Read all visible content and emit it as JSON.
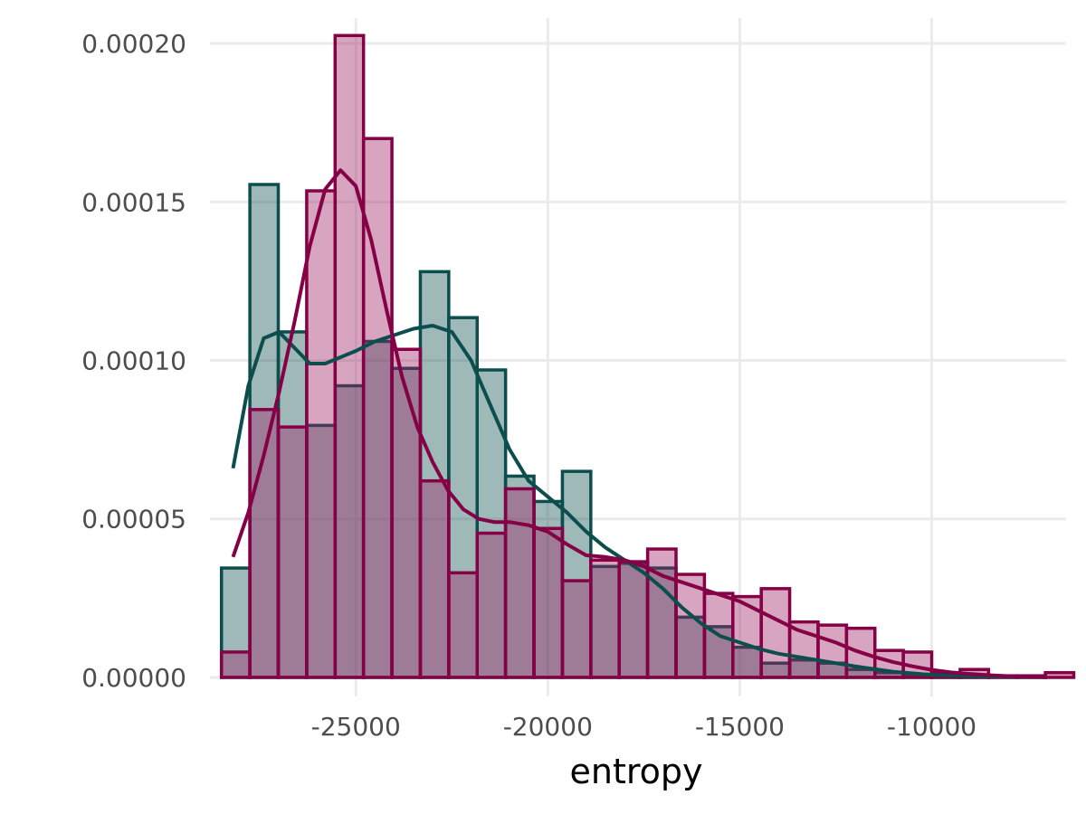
{
  "chart_data": {
    "type": "histogram",
    "xlabel": "entropy",
    "ylabel": "",
    "xlim": [
      -28800,
      -6500
    ],
    "ylim": [
      -6e-06,
      0.000208
    ],
    "x_ticks": [
      -25000,
      -20000,
      -15000,
      -10000
    ],
    "x_tick_labels": [
      "-25000",
      "-20000",
      "-15000",
      "-10000"
    ],
    "y_ticks": [
      0,
      5e-05,
      0.0001,
      0.00015,
      0.0002
    ],
    "y_tick_labels": [
      "0.00000",
      "0.00005",
      "0.00010",
      "0.00015",
      "0.00020"
    ],
    "grid": true,
    "legend": "none",
    "bin_width": 740,
    "series": [
      {
        "fill": "#0e5050",
        "stroke": "#0c4e4e",
        "bins": [
          [
            -28500,
            3.45e-05
          ],
          [
            -27760,
            0.0001555
          ],
          [
            -27020,
            0.000109
          ],
          [
            -26280,
            7.95e-05
          ],
          [
            -25540,
            9.2e-05
          ],
          [
            -24800,
            0.000106
          ],
          [
            -24060,
            9.75e-05
          ],
          [
            -23320,
            0.000128
          ],
          [
            -22580,
            0.0001135
          ],
          [
            -21840,
            9.7e-05
          ],
          [
            -21100,
            6.35e-05
          ],
          [
            -20360,
            5.55e-05
          ],
          [
            -19620,
            6.5e-05
          ],
          [
            -18880,
            3.5e-05
          ],
          [
            -18140,
            3.6e-05
          ],
          [
            -17400,
            3.45e-05
          ],
          [
            -16660,
            1.9e-05
          ],
          [
            -15920,
            1.6e-05
          ],
          [
            -15180,
            9.5e-06
          ],
          [
            -14440,
            4.5e-06
          ],
          [
            -13700,
            5.5e-06
          ],
          [
            -12960,
            4.5e-06
          ],
          [
            -12220,
            2.5e-06
          ],
          [
            -11480,
            1.5e-06
          ],
          [
            -10740,
            1e-06
          ],
          [
            -10000,
            5e-07
          ],
          [
            -9260,
            5e-07
          ],
          [
            -8520,
            5e-07
          ],
          [
            -7780,
            5e-07
          ]
        ],
        "density": [
          [
            -28200,
            6.6e-05
          ],
          [
            -27800,
            9.2e-05
          ],
          [
            -27400,
            0.000107
          ],
          [
            -27000,
            0.000109
          ],
          [
            -26600,
            0.000104
          ],
          [
            -26200,
            9.9e-05
          ],
          [
            -25800,
            9.9e-05
          ],
          [
            -25400,
            0.000101
          ],
          [
            -25000,
            0.000103
          ],
          [
            -24500,
            0.000106
          ],
          [
            -24000,
            0.000108
          ],
          [
            -23500,
            0.00011
          ],
          [
            -23000,
            0.000111
          ],
          [
            -22500,
            0.000109
          ],
          [
            -22000,
            0.0001
          ],
          [
            -21500,
            8.6e-05
          ],
          [
            -21000,
            7.2e-05
          ],
          [
            -20500,
            6.2e-05
          ],
          [
            -20000,
            5.7e-05
          ],
          [
            -19500,
            5.2e-05
          ],
          [
            -19000,
            4.6e-05
          ],
          [
            -18500,
            4.1e-05
          ],
          [
            -18000,
            3.7e-05
          ],
          [
            -17500,
            3.3e-05
          ],
          [
            -17000,
            2.8e-05
          ],
          [
            -16500,
            2.2e-05
          ],
          [
            -16000,
            1.7e-05
          ],
          [
            -15500,
            1.3e-05
          ],
          [
            -15000,
            1.1e-05
          ],
          [
            -14500,
            9e-06
          ],
          [
            -14000,
            7.5e-06
          ],
          [
            -13500,
            6.5e-06
          ],
          [
            -13000,
            5.5e-06
          ],
          [
            -12500,
            4.5e-06
          ],
          [
            -12000,
            3.5e-06
          ],
          [
            -11000,
            1.8e-06
          ],
          [
            -10000,
            8e-07
          ],
          [
            -9000,
            4e-07
          ],
          [
            -8000,
            2e-07
          ],
          [
            -7000,
            1e-07
          ]
        ]
      },
      {
        "fill": "#9e1f63",
        "stroke": "#850045",
        "bins": [
          [
            -28500,
            8e-06
          ],
          [
            -27760,
            8.45e-05
          ],
          [
            -27020,
            7.9e-05
          ],
          [
            -26280,
            0.0001535
          ],
          [
            -25540,
            0.0002025
          ],
          [
            -24800,
            0.00017
          ],
          [
            -24060,
            0.0001035
          ],
          [
            -23320,
            6.2e-05
          ],
          [
            -22580,
            3.3e-05
          ],
          [
            -21840,
            4.55e-05
          ],
          [
            -21100,
            5.95e-05
          ],
          [
            -20360,
            4.7e-05
          ],
          [
            -19620,
            3.05e-05
          ],
          [
            -18880,
            3.7e-05
          ],
          [
            -18140,
            3.65e-05
          ],
          [
            -17400,
            4.05e-05
          ],
          [
            -16660,
            3.25e-05
          ],
          [
            -15920,
            2.65e-05
          ],
          [
            -15180,
            2.55e-05
          ],
          [
            -14440,
            2.8e-05
          ],
          [
            -13700,
            1.75e-05
          ],
          [
            -12960,
            1.65e-05
          ],
          [
            -12220,
            1.55e-05
          ],
          [
            -11480,
            8.5e-06
          ],
          [
            -10740,
            8e-06
          ],
          [
            -10000,
            1.5e-06
          ],
          [
            -9260,
            2.5e-06
          ],
          [
            -8520,
            5e-07
          ],
          [
            -7780,
            5e-07
          ],
          [
            -7040,
            1.5e-06
          ]
        ],
        "density": [
          [
            -28200,
            3.8e-05
          ],
          [
            -27800,
            5.2e-05
          ],
          [
            -27400,
            7e-05
          ],
          [
            -27000,
            9e-05
          ],
          [
            -26600,
            0.000112
          ],
          [
            -26200,
            0.000136
          ],
          [
            -25800,
            0.000154
          ],
          [
            -25400,
            0.00016
          ],
          [
            -25000,
            0.000155
          ],
          [
            -24600,
            0.000138
          ],
          [
            -24200,
            0.000116
          ],
          [
            -23800,
            9.5e-05
          ],
          [
            -23400,
            7.9e-05
          ],
          [
            -23000,
            6.8e-05
          ],
          [
            -22600,
            5.9e-05
          ],
          [
            -22200,
            5.3e-05
          ],
          [
            -21800,
            5e-05
          ],
          [
            -21400,
            4.9e-05
          ],
          [
            -21000,
            4.9e-05
          ],
          [
            -20500,
            4.8e-05
          ],
          [
            -20000,
            4.6e-05
          ],
          [
            -19500,
            4.2e-05
          ],
          [
            -19000,
            3.85e-05
          ],
          [
            -18500,
            3.8e-05
          ],
          [
            -18000,
            3.7e-05
          ],
          [
            -17500,
            3.5e-05
          ],
          [
            -17000,
            3.2e-05
          ],
          [
            -16500,
            3e-05
          ],
          [
            -16000,
            2.8e-05
          ],
          [
            -15500,
            2.6e-05
          ],
          [
            -15000,
            2.4e-05
          ],
          [
            -14500,
            2.1e-05
          ],
          [
            -14000,
            1.8e-05
          ],
          [
            -13500,
            1.5e-05
          ],
          [
            -13000,
            1.3e-05
          ],
          [
            -12500,
            1.1e-05
          ],
          [
            -12000,
            8.5e-06
          ],
          [
            -11500,
            6.5e-06
          ],
          [
            -11000,
            4.8e-06
          ],
          [
            -10500,
            3.5e-06
          ],
          [
            -10000,
            2.4e-06
          ],
          [
            -9500,
            1.6e-06
          ],
          [
            -9000,
            1.1e-06
          ],
          [
            -8500,
            7e-07
          ],
          [
            -8000,
            4e-07
          ],
          [
            -7500,
            2e-07
          ],
          [
            -7000,
            1e-07
          ]
        ]
      }
    ]
  }
}
